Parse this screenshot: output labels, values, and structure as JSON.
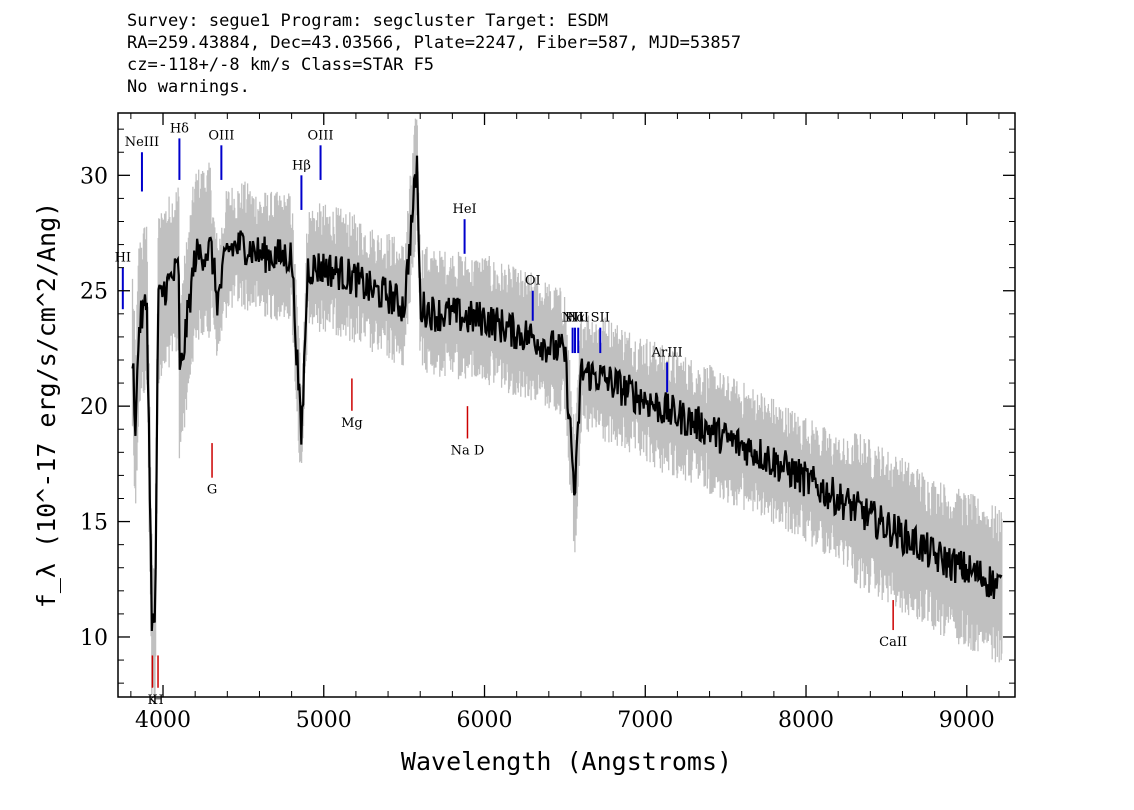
{
  "header": {
    "line1": "Survey: segue1 Program: segcluster Target: ESDM",
    "line2": "RA=259.43884, Dec=43.03566, Plate=2247, Fiber=587, MJD=53857",
    "line3": "cz=-118+/-8 km/s Class=STAR F5",
    "line4": "No warnings."
  },
  "chart_data": {
    "type": "line",
    "xlabel": "Wavelength (Angstroms)",
    "ylabel": "f_λ (10^-17 erg/s/cm^2/Ang)",
    "xlim": [
      3720,
      9300
    ],
    "ylim": [
      7.4,
      32.7
    ],
    "x_ticks": [
      4000,
      5000,
      6000,
      7000,
      8000,
      9000
    ],
    "y_ticks": [
      10,
      15,
      20,
      25,
      30
    ],
    "grid": false,
    "series": [
      {
        "role": "smoothed spectrum",
        "color": "#000000",
        "x": [
          3800,
          3830,
          3850,
          3900,
          3930,
          3950,
          3970,
          4000,
          4100,
          4102,
          4200,
          4300,
          4340,
          4400,
          4500,
          4600,
          4700,
          4800,
          4861,
          4900,
          5000,
          5100,
          5200,
          5300,
          5400,
          5500,
          5580,
          5600,
          5700,
          5800,
          5900,
          6000,
          6100,
          6200,
          6300,
          6400,
          6500,
          6563,
          6600,
          6700,
          6800,
          6900,
          7000,
          7100,
          7200,
          7300,
          7400,
          7500,
          7600,
          7700,
          7800,
          7900,
          8000,
          8100,
          8200,
          8300,
          8400,
          8500,
          8600,
          8700,
          8800,
          8900,
          9000,
          9100,
          9200
        ],
        "y": [
          24.0,
          19.0,
          23.5,
          24.5,
          11.0,
          10.0,
          24.5,
          25.0,
          26.0,
          21.0,
          26.5,
          26.8,
          24.5,
          26.8,
          27.0,
          26.6,
          26.5,
          26.5,
          18.5,
          26.0,
          26.0,
          25.8,
          25.5,
          25.0,
          24.8,
          24.3,
          30.5,
          24.3,
          24.0,
          24.0,
          23.8,
          23.8,
          23.5,
          23.2,
          23.0,
          22.6,
          22.3,
          16.0,
          21.5,
          21.3,
          21.0,
          20.6,
          20.3,
          19.9,
          19.6,
          19.3,
          19.0,
          18.6,
          18.3,
          18.0,
          17.6,
          17.2,
          16.8,
          16.4,
          16.0,
          15.6,
          15.2,
          14.8,
          14.4,
          14.0,
          13.5,
          13.2,
          12.9,
          12.6,
          12.2
        ]
      },
      {
        "role": "spectrum noise",
        "color": "#c0c0c0"
      }
    ],
    "emission_lines": [
      {
        "label": "HI",
        "x": 3750
      },
      {
        "label": "NeIII",
        "x": 3869
      },
      {
        "label": "Hδ",
        "x": 4102
      },
      {
        "label": "OIII",
        "x": 4363
      },
      {
        "label": "Hβ",
        "x": 4861
      },
      {
        "label": "OIII",
        "x": 4980
      },
      {
        "label": "HeI",
        "x": 5876
      },
      {
        "label": "OI",
        "x": 6300
      },
      {
        "label": "NII",
        "x": 6548
      },
      {
        "label": "Hα",
        "x": 6563
      },
      {
        "label": "NII",
        "x": 6583
      },
      {
        "label": "SII",
        "x": 6720
      },
      {
        "label": "ArIII",
        "x": 7136
      }
    ],
    "absorption_lines": [
      {
        "label": "K",
        "x": 3934
      },
      {
        "label": "H",
        "x": 3969
      },
      {
        "label": "G",
        "x": 4305
      },
      {
        "label": "Mg",
        "x": 5175
      },
      {
        "label": "Na D",
        "x": 5894
      },
      {
        "label": "CaII",
        "x": 8542
      }
    ],
    "colors": {
      "emission": "#0000cc",
      "absorption": "#cc0000",
      "noise": "#c0c0c0",
      "spectrum": "#000000"
    }
  }
}
